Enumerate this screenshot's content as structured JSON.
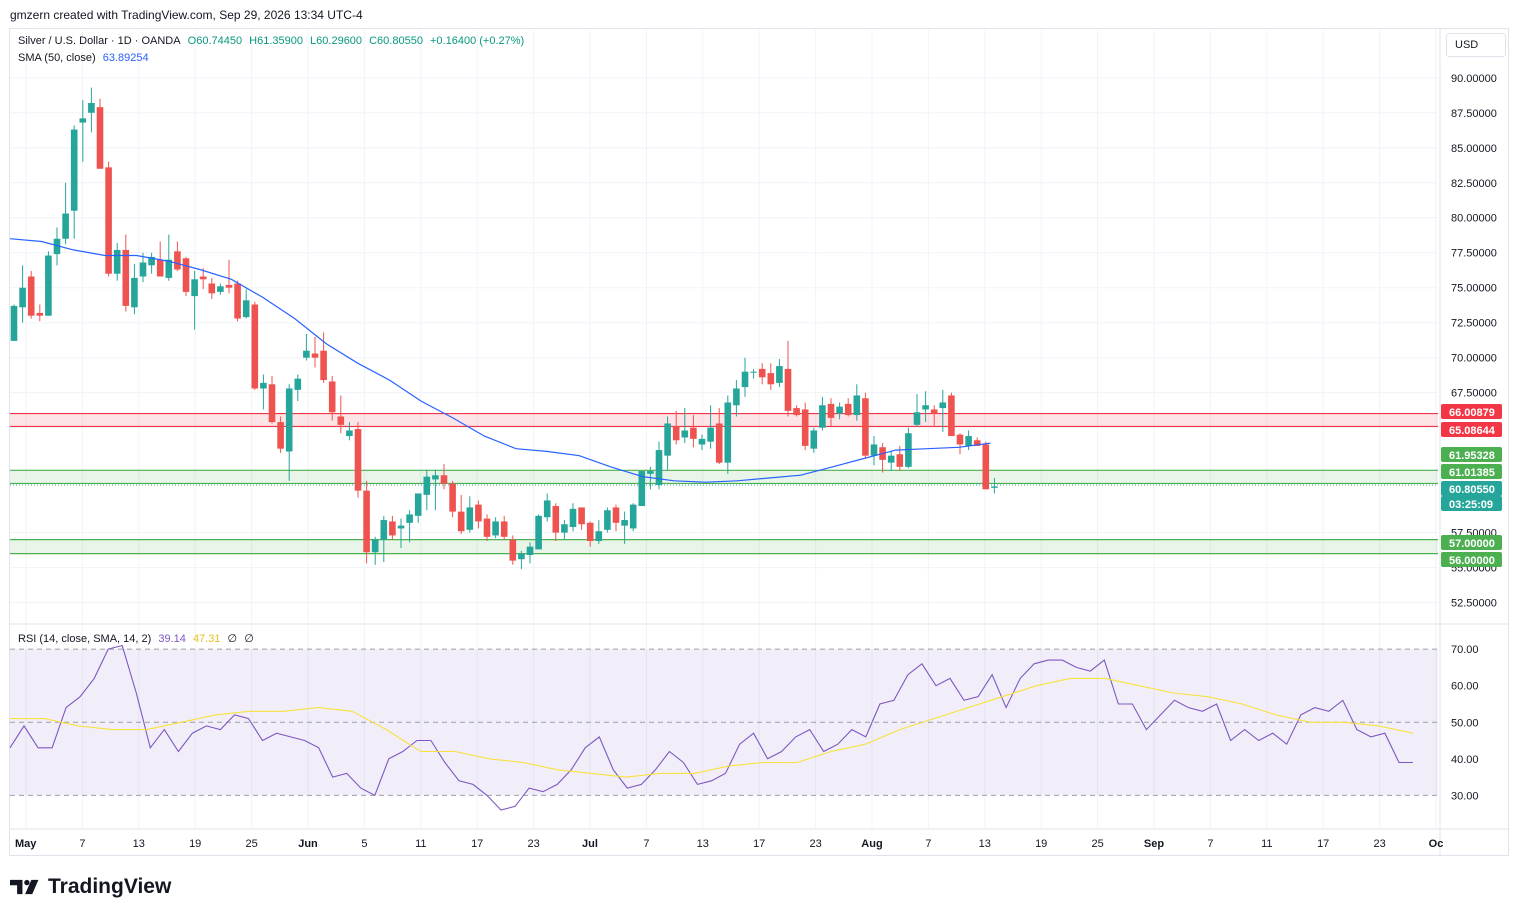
{
  "header": {
    "author_line": "gmzern created with TradingView.com, Sep 29, 2026 13:34 UTC-4"
  },
  "legend": {
    "symbol": "Silver / U.S. Dollar · 1D · OANDA",
    "open": "O60.74450",
    "high": "H61.35900",
    "low": "L60.29600",
    "close": "C60.80550",
    "change": "+0.16400 (+0.27%)",
    "sma_label": "SMA (50, close)",
    "sma_value": "63.89254",
    "rsi_label": "RSI (14, close, SMA, 14, 2)",
    "rsi_value": "39.14",
    "rsi_sma_value": "47.31",
    "rsi_extra1": "∅",
    "rsi_extra2": "∅"
  },
  "currency": "USD",
  "brand": {
    "name": "TradingView"
  },
  "colors": {
    "up": "#26a69a",
    "down": "#ef5350",
    "sma": "#2962ff",
    "rsi": "#7e57c2",
    "rsi_sma": "#f7e13f",
    "resistance_zone": "#f23645",
    "support_zone": "#4caf50"
  },
  "chart_data": [
    {
      "type": "candlestick",
      "title": "Silver / U.S. Dollar · 1D · OANDA",
      "y_ticks": [
        "90.00000",
        "87.50000",
        "85.00000",
        "82.50000",
        "80.00000",
        "77.50000",
        "75.00000",
        "72.50000",
        "70.00000",
        "67.50000",
        "65.00000",
        "57.50000",
        "55.00000",
        "52.50000"
      ],
      "ylim": [
        51.4,
        92.7
      ],
      "x_ticks": [
        "May",
        "7",
        "13",
        "19",
        "25",
        "Jun",
        "5",
        "11",
        "17",
        "23",
        "Jul",
        "7",
        "13",
        "17",
        "23",
        "Aug",
        "7",
        "13",
        "19",
        "25",
        "Sep",
        "7",
        "11",
        "17",
        "23",
        "Oc"
      ],
      "candles": [
        {
          "o": 71.2,
          "h": 73.8,
          "l": 71.2,
          "c": 73.7
        },
        {
          "o": 73.6,
          "h": 76.6,
          "l": 72.5,
          "c": 75.0
        },
        {
          "o": 75.8,
          "h": 76.2,
          "l": 72.8,
          "c": 73.0
        },
        {
          "o": 73.2,
          "h": 73.8,
          "l": 72.6,
          "c": 73.0
        },
        {
          "o": 73.0,
          "h": 77.6,
          "l": 73.0,
          "c": 77.3
        },
        {
          "o": 77.4,
          "h": 79.3,
          "l": 76.6,
          "c": 78.5
        },
        {
          "o": 78.5,
          "h": 82.5,
          "l": 78.1,
          "c": 80.3
        },
        {
          "o": 80.5,
          "h": 86.6,
          "l": 78.5,
          "c": 86.3
        },
        {
          "o": 86.8,
          "h": 88.4,
          "l": 84.0,
          "c": 87.1
        },
        {
          "o": 87.5,
          "h": 89.3,
          "l": 86.1,
          "c": 88.2
        },
        {
          "o": 87.9,
          "h": 88.5,
          "l": 83.5,
          "c": 83.5
        },
        {
          "o": 83.6,
          "h": 84.0,
          "l": 75.8,
          "c": 76.0
        },
        {
          "o": 76.0,
          "h": 78.2,
          "l": 75.5,
          "c": 77.7
        },
        {
          "o": 77.7,
          "h": 78.8,
          "l": 73.3,
          "c": 73.7
        },
        {
          "o": 73.6,
          "h": 76.7,
          "l": 73.1,
          "c": 75.7
        },
        {
          "o": 75.8,
          "h": 77.5,
          "l": 75.4,
          "c": 76.8
        },
        {
          "o": 76.6,
          "h": 77.5,
          "l": 76.0,
          "c": 77.2
        },
        {
          "o": 77.0,
          "h": 78.3,
          "l": 75.8,
          "c": 75.8
        },
        {
          "o": 75.7,
          "h": 78.8,
          "l": 75.5,
          "c": 77.0
        },
        {
          "o": 77.6,
          "h": 78.3,
          "l": 76.2,
          "c": 76.3
        },
        {
          "o": 77.1,
          "h": 77.2,
          "l": 74.4,
          "c": 74.7
        },
        {
          "o": 74.4,
          "h": 76.2,
          "l": 72.0,
          "c": 75.6
        },
        {
          "o": 75.8,
          "h": 76.4,
          "l": 74.9,
          "c": 75.6
        },
        {
          "o": 75.3,
          "h": 75.7,
          "l": 74.2,
          "c": 74.6
        },
        {
          "o": 74.7,
          "h": 75.3,
          "l": 74.5,
          "c": 75.1
        },
        {
          "o": 75.2,
          "h": 77.0,
          "l": 74.6,
          "c": 75.0
        },
        {
          "o": 75.3,
          "h": 75.5,
          "l": 72.6,
          "c": 72.8
        },
        {
          "o": 72.9,
          "h": 74.9,
          "l": 72.8,
          "c": 74.1
        },
        {
          "o": 73.8,
          "h": 74.0,
          "l": 67.7,
          "c": 67.8
        },
        {
          "o": 67.8,
          "h": 68.8,
          "l": 66.3,
          "c": 68.2
        },
        {
          "o": 68.1,
          "h": 68.7,
          "l": 65.3,
          "c": 65.4
        },
        {
          "o": 65.4,
          "h": 65.8,
          "l": 63.2,
          "c": 63.5
        },
        {
          "o": 63.3,
          "h": 68.1,
          "l": 61.2,
          "c": 67.8
        },
        {
          "o": 67.7,
          "h": 68.8,
          "l": 66.9,
          "c": 68.5
        },
        {
          "o": 70.0,
          "h": 71.7,
          "l": 69.8,
          "c": 70.5
        },
        {
          "o": 70.3,
          "h": 71.5,
          "l": 69.3,
          "c": 70.0
        },
        {
          "o": 70.5,
          "h": 71.8,
          "l": 68.2,
          "c": 68.4
        },
        {
          "o": 68.3,
          "h": 68.7,
          "l": 65.5,
          "c": 66.1
        },
        {
          "o": 65.8,
          "h": 67.3,
          "l": 64.6,
          "c": 65.2
        },
        {
          "o": 64.4,
          "h": 65.4,
          "l": 64.1,
          "c": 64.8
        },
        {
          "o": 64.9,
          "h": 65.4,
          "l": 60.0,
          "c": 60.5
        },
        {
          "o": 60.5,
          "h": 61.2,
          "l": 55.3,
          "c": 56.1
        },
        {
          "o": 56.1,
          "h": 57.2,
          "l": 55.2,
          "c": 57.0
        },
        {
          "o": 57.0,
          "h": 58.7,
          "l": 55.4,
          "c": 58.4
        },
        {
          "o": 58.3,
          "h": 58.7,
          "l": 57.0,
          "c": 57.3
        },
        {
          "o": 57.8,
          "h": 58.5,
          "l": 56.4,
          "c": 58.0
        },
        {
          "o": 58.2,
          "h": 59.1,
          "l": 56.8,
          "c": 58.8
        },
        {
          "o": 58.7,
          "h": 60.1,
          "l": 58.2,
          "c": 60.3
        },
        {
          "o": 60.2,
          "h": 62.0,
          "l": 59.1,
          "c": 61.5
        },
        {
          "o": 61.3,
          "h": 62.0,
          "l": 59.1,
          "c": 61.6
        },
        {
          "o": 61.6,
          "h": 62.4,
          "l": 60.6,
          "c": 61.0
        },
        {
          "o": 61.0,
          "h": 61.2,
          "l": 58.6,
          "c": 59.0
        },
        {
          "o": 59.0,
          "h": 60.2,
          "l": 57.4,
          "c": 57.6
        },
        {
          "o": 57.7,
          "h": 60.1,
          "l": 57.5,
          "c": 59.3
        },
        {
          "o": 59.5,
          "h": 59.8,
          "l": 57.8,
          "c": 58.3
        },
        {
          "o": 58.5,
          "h": 58.8,
          "l": 56.9,
          "c": 57.2
        },
        {
          "o": 57.3,
          "h": 58.6,
          "l": 57.1,
          "c": 58.3
        },
        {
          "o": 58.3,
          "h": 58.7,
          "l": 57.0,
          "c": 57.2
        },
        {
          "o": 57.0,
          "h": 57.3,
          "l": 55.2,
          "c": 55.5
        },
        {
          "o": 55.6,
          "h": 56.2,
          "l": 54.9,
          "c": 56.0
        },
        {
          "o": 55.9,
          "h": 56.8,
          "l": 55.3,
          "c": 56.5
        },
        {
          "o": 56.3,
          "h": 58.8,
          "l": 56.3,
          "c": 58.7
        },
        {
          "o": 58.6,
          "h": 60.3,
          "l": 58.3,
          "c": 59.8
        },
        {
          "o": 59.4,
          "h": 59.6,
          "l": 56.9,
          "c": 57.5
        },
        {
          "o": 57.5,
          "h": 58.4,
          "l": 57.0,
          "c": 58.1
        },
        {
          "o": 57.9,
          "h": 59.6,
          "l": 57.6,
          "c": 59.2
        },
        {
          "o": 59.3,
          "h": 59.3,
          "l": 57.7,
          "c": 58.1
        },
        {
          "o": 58.2,
          "h": 58.3,
          "l": 56.5,
          "c": 56.9
        },
        {
          "o": 56.9,
          "h": 58.4,
          "l": 56.7,
          "c": 57.6
        },
        {
          "o": 57.7,
          "h": 59.3,
          "l": 57.5,
          "c": 59.1
        },
        {
          "o": 59.3,
          "h": 59.5,
          "l": 57.6,
          "c": 58.2
        },
        {
          "o": 58.0,
          "h": 59.0,
          "l": 56.7,
          "c": 58.4
        },
        {
          "o": 57.8,
          "h": 59.6,
          "l": 57.6,
          "c": 59.5
        },
        {
          "o": 59.4,
          "h": 61.8,
          "l": 59.4,
          "c": 61.9
        },
        {
          "o": 61.7,
          "h": 62.2,
          "l": 60.6,
          "c": 61.9
        },
        {
          "o": 60.9,
          "h": 64.0,
          "l": 60.6,
          "c": 63.4
        },
        {
          "o": 63.0,
          "h": 65.8,
          "l": 62.0,
          "c": 65.3
        },
        {
          "o": 65.1,
          "h": 66.2,
          "l": 63.8,
          "c": 64.1
        },
        {
          "o": 64.3,
          "h": 66.4,
          "l": 63.9,
          "c": 64.8
        },
        {
          "o": 65.0,
          "h": 65.9,
          "l": 63.6,
          "c": 64.2
        },
        {
          "o": 63.8,
          "h": 64.5,
          "l": 63.4,
          "c": 64.2
        },
        {
          "o": 64.0,
          "h": 66.6,
          "l": 63.5,
          "c": 65.0
        },
        {
          "o": 65.3,
          "h": 66.4,
          "l": 62.4,
          "c": 62.5
        },
        {
          "o": 62.5,
          "h": 67.3,
          "l": 61.7,
          "c": 66.8
        },
        {
          "o": 66.6,
          "h": 68.4,
          "l": 65.8,
          "c": 67.8
        },
        {
          "o": 67.9,
          "h": 70.0,
          "l": 67.2,
          "c": 69.0
        },
        {
          "o": 69.0,
          "h": 69.2,
          "l": 68.5,
          "c": 69.0
        },
        {
          "o": 69.2,
          "h": 69.6,
          "l": 68.1,
          "c": 68.6
        },
        {
          "o": 68.9,
          "h": 69.6,
          "l": 67.7,
          "c": 68.1
        },
        {
          "o": 68.2,
          "h": 69.9,
          "l": 67.9,
          "c": 69.4
        },
        {
          "o": 69.2,
          "h": 71.2,
          "l": 65.8,
          "c": 66.2
        },
        {
          "o": 66.4,
          "h": 66.6,
          "l": 65.8,
          "c": 65.9
        },
        {
          "o": 66.3,
          "h": 66.8,
          "l": 63.4,
          "c": 63.7
        },
        {
          "o": 63.5,
          "h": 65.0,
          "l": 63.2,
          "c": 64.8
        },
        {
          "o": 65.0,
          "h": 67.2,
          "l": 64.8,
          "c": 66.6
        },
        {
          "o": 66.7,
          "h": 67.1,
          "l": 65.1,
          "c": 65.7
        },
        {
          "o": 66.0,
          "h": 66.8,
          "l": 65.6,
          "c": 66.5
        },
        {
          "o": 66.7,
          "h": 67.1,
          "l": 65.8,
          "c": 65.9
        },
        {
          "o": 65.9,
          "h": 68.1,
          "l": 65.5,
          "c": 67.3
        },
        {
          "o": 67.1,
          "h": 67.5,
          "l": 62.8,
          "c": 63.0
        },
        {
          "o": 63.0,
          "h": 64.4,
          "l": 62.3,
          "c": 63.8
        },
        {
          "o": 63.6,
          "h": 63.9,
          "l": 61.8,
          "c": 62.7
        },
        {
          "o": 62.5,
          "h": 63.3,
          "l": 61.9,
          "c": 63.0
        },
        {
          "o": 63.1,
          "h": 63.7,
          "l": 61.9,
          "c": 62.2
        },
        {
          "o": 62.2,
          "h": 65.0,
          "l": 62.1,
          "c": 64.6
        },
        {
          "o": 65.2,
          "h": 67.4,
          "l": 65.1,
          "c": 66.1
        },
        {
          "o": 66.3,
          "h": 67.6,
          "l": 65.4,
          "c": 66.6
        },
        {
          "o": 66.3,
          "h": 66.6,
          "l": 65.1,
          "c": 66.0
        },
        {
          "o": 66.4,
          "h": 67.7,
          "l": 64.7,
          "c": 66.8
        },
        {
          "o": 67.3,
          "h": 67.5,
          "l": 64.4,
          "c": 64.4
        },
        {
          "o": 64.5,
          "h": 64.6,
          "l": 63.1,
          "c": 63.8
        },
        {
          "o": 63.7,
          "h": 64.8,
          "l": 63.4,
          "c": 64.4
        },
        {
          "o": 64.1,
          "h": 64.3,
          "l": 63.7,
          "c": 63.7
        },
        {
          "o": 63.8,
          "h": 64.0,
          "l": 60.6,
          "c": 60.6
        },
        {
          "o": 60.7,
          "h": 61.4,
          "l": 60.3,
          "c": 60.8
        }
      ],
      "sma_50": [
        78.5,
        78.3,
        77.7,
        77.3,
        77.3,
        76.9,
        76.3,
        75.6,
        74.3,
        72.8,
        71.0,
        69.6,
        68.4,
        66.9,
        65.7,
        64.4,
        63.5,
        63.3,
        63.0,
        62.2,
        61.5,
        61.2,
        61.1,
        61.2,
        61.4,
        61.6,
        62.2,
        62.8,
        63.4,
        63.5,
        63.6,
        63.9
      ],
      "price_labels": [
        {
          "value": "66.00879",
          "kind": "resistance"
        },
        {
          "value": "65.08644",
          "kind": "resistance"
        },
        {
          "value": "61.95328",
          "kind": "support"
        },
        {
          "value": "61.01385",
          "kind": "support"
        },
        {
          "value": "60.80550",
          "kind": "last"
        },
        {
          "value": "03:25:09",
          "kind": "countdown"
        },
        {
          "value": "57.00000",
          "kind": "support"
        },
        {
          "value": "56.00000",
          "kind": "support"
        }
      ],
      "zones": [
        {
          "from": 65.08644,
          "to": 66.00879,
          "kind": "resistance"
        },
        {
          "from": 61.01385,
          "to": 61.95328,
          "kind": "support"
        },
        {
          "from": 56.0,
          "to": 57.0,
          "kind": "support"
        }
      ],
      "dotted_line": 60.9
    },
    {
      "type": "line",
      "title": "RSI (14, close, SMA, 14, 2)",
      "y_ticks": [
        "70.00",
        "60.00",
        "50.00",
        "40.00",
        "30.00"
      ],
      "ylim": [
        26,
        72.5
      ],
      "bands": [
        30,
        50,
        70
      ],
      "rsi": [
        43,
        49,
        43,
        43,
        54,
        57,
        62,
        70,
        71,
        58,
        43,
        48,
        42,
        47,
        49,
        48,
        52,
        51,
        45,
        47,
        46,
        45,
        43,
        35,
        36,
        32,
        30,
        40,
        42,
        45,
        45,
        39,
        34,
        33,
        30,
        26,
        27,
        32,
        31,
        33,
        37,
        43,
        46,
        37,
        32,
        33,
        37,
        42,
        39,
        33,
        34,
        36,
        44,
        47,
        40,
        42,
        46,
        48,
        42,
        44,
        48,
        46,
        55,
        56,
        63,
        66,
        60,
        62,
        56,
        57,
        63,
        54,
        62,
        66,
        67,
        67,
        65,
        64,
        67,
        55,
        55,
        48,
        52,
        56,
        54,
        53,
        55,
        45,
        48,
        45,
        47,
        44,
        52,
        54,
        53,
        56,
        48,
        46,
        47,
        39,
        39
      ],
      "rsi_sma": [
        51,
        51,
        49,
        48,
        48,
        50,
        52,
        53,
        53,
        54,
        53,
        48,
        42,
        42,
        40,
        39,
        37,
        36,
        35,
        36,
        36,
        38,
        39,
        39,
        42,
        44,
        48,
        51,
        54,
        57,
        60,
        62,
        62,
        60,
        58,
        57,
        55,
        52,
        50,
        50,
        49,
        47
      ]
    }
  ]
}
